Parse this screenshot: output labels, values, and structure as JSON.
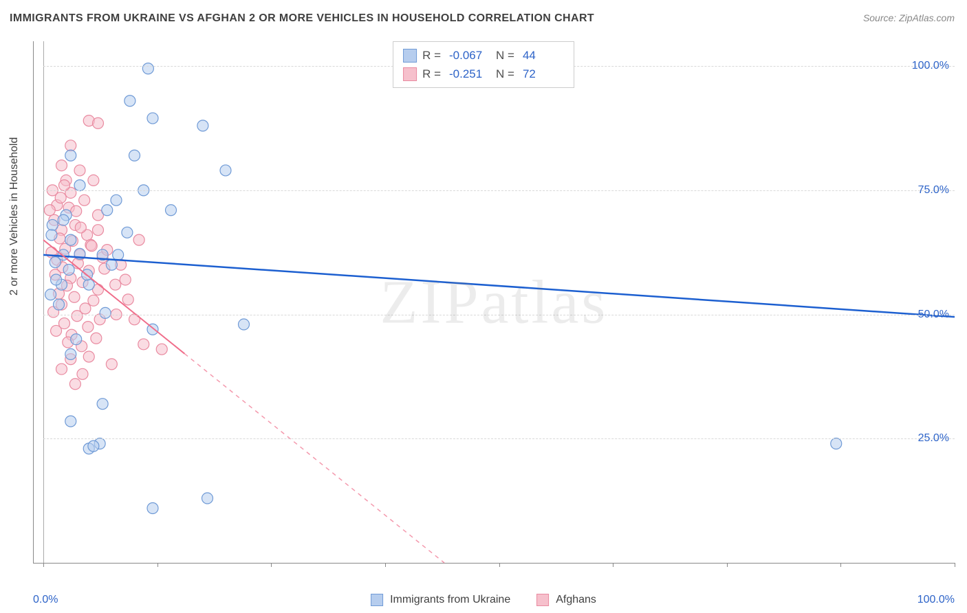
{
  "title": "IMMIGRANTS FROM UKRAINE VS AFGHAN 2 OR MORE VEHICLES IN HOUSEHOLD CORRELATION CHART",
  "source": "Source: ZipAtlas.com",
  "watermark": "ZIPatlas",
  "chart": {
    "type": "scatter",
    "xlabel_min": "0.0%",
    "xlabel_max": "100.0%",
    "yaxis_title": "2 or more Vehicles in Household",
    "xlim": [
      0,
      100
    ],
    "ylim": [
      0,
      105
    ],
    "ytick_labels": [
      "25.0%",
      "50.0%",
      "75.0%",
      "100.0%"
    ],
    "ytick_values": [
      25,
      50,
      75,
      100
    ],
    "xtick_values": [
      0,
      12.5,
      25,
      37.5,
      50,
      62.5,
      75,
      87.5,
      100
    ],
    "grid_color": "#d8d8d8",
    "background_color": "#ffffff",
    "axis_color": "#888888",
    "tick_label_color": "#2d63c8",
    "marker_radius": 8,
    "marker_opacity": 0.55,
    "marker_stroke_width": 1.2,
    "series": [
      {
        "name": "Immigrants from Ukraine",
        "color_fill": "#b6cdee",
        "color_stroke": "#6f9ad6",
        "R": "-0.067",
        "N": "44",
        "trend": {
          "x1": 0,
          "y1": 62,
          "x2": 100,
          "y2": 49.5,
          "solid_until_x": 100,
          "stroke": "#1c5fd0",
          "width": 2.5
        },
        "points": [
          [
            11.5,
            99.5
          ],
          [
            9.5,
            93
          ],
          [
            12,
            89.5
          ],
          [
            17.5,
            88
          ],
          [
            3,
            82
          ],
          [
            10,
            82
          ],
          [
            20,
            79
          ],
          [
            4,
            76
          ],
          [
            11,
            75
          ],
          [
            8,
            73
          ],
          [
            7,
            71
          ],
          [
            14,
            71
          ],
          [
            1,
            68
          ],
          [
            3,
            65
          ],
          [
            2.2,
            62
          ],
          [
            4,
            62.2
          ],
          [
            6.5,
            62
          ],
          [
            8.2,
            62
          ],
          [
            1.3,
            60.5
          ],
          [
            2.8,
            59
          ],
          [
            2,
            56
          ],
          [
            5,
            56
          ],
          [
            0.8,
            54
          ],
          [
            1.7,
            52
          ],
          [
            12,
            47
          ],
          [
            22,
            48
          ],
          [
            3,
            42
          ],
          [
            6.5,
            32
          ],
          [
            3,
            28.5
          ],
          [
            5,
            23
          ],
          [
            6.2,
            24
          ],
          [
            5.5,
            23.5
          ],
          [
            18,
            13
          ],
          [
            12,
            11
          ],
          [
            87,
            24
          ],
          [
            2.5,
            70
          ],
          [
            0.9,
            66
          ],
          [
            1.4,
            57
          ],
          [
            4.8,
            58
          ],
          [
            9.2,
            66.5
          ],
          [
            6.8,
            50.3
          ],
          [
            3.6,
            45
          ],
          [
            2.2,
            69
          ],
          [
            7.5,
            60
          ]
        ]
      },
      {
        "name": "Afghans",
        "color_fill": "#f6c0cc",
        "color_stroke": "#e98aa0",
        "R": "-0.251",
        "N": "72",
        "trend": {
          "x1": 0,
          "y1": 65,
          "x2": 44,
          "y2": 0,
          "solid_until_x": 15.5,
          "stroke": "#f06d8a",
          "width": 2
        },
        "points": [
          [
            5,
            89
          ],
          [
            6,
            88.5
          ],
          [
            3,
            84
          ],
          [
            2,
            80
          ],
          [
            4,
            79
          ],
          [
            2.5,
            77
          ],
          [
            5.5,
            77
          ],
          [
            1,
            75
          ],
          [
            3,
            74.5
          ],
          [
            4.5,
            73
          ],
          [
            1.5,
            72
          ],
          [
            2.8,
            71.5
          ],
          [
            6,
            70
          ],
          [
            1.2,
            69
          ],
          [
            3.5,
            68
          ],
          [
            2,
            67
          ],
          [
            4.8,
            66
          ],
          [
            1.8,
            65.3
          ],
          [
            3.2,
            64.8
          ],
          [
            5.2,
            64
          ],
          [
            2.4,
            63.2
          ],
          [
            0.9,
            62.5
          ],
          [
            4,
            62
          ],
          [
            6.5,
            61.5
          ],
          [
            1.5,
            61
          ],
          [
            3.8,
            60.3
          ],
          [
            2.1,
            59.5
          ],
          [
            5,
            58.8
          ],
          [
            1.3,
            58
          ],
          [
            3,
            57.3
          ],
          [
            4.3,
            56.5
          ],
          [
            2.6,
            55.8
          ],
          [
            6,
            55
          ],
          [
            1.7,
            54.2
          ],
          [
            3.4,
            53.5
          ],
          [
            5.5,
            52.8
          ],
          [
            2,
            52
          ],
          [
            4.6,
            51.2
          ],
          [
            1.1,
            50.5
          ],
          [
            3.7,
            49.7
          ],
          [
            6.2,
            49
          ],
          [
            2.3,
            48.2
          ],
          [
            4.9,
            47.5
          ],
          [
            1.4,
            46.7
          ],
          [
            3.1,
            45.9
          ],
          [
            5.8,
            45.2
          ],
          [
            2.7,
            44.4
          ],
          [
            4.2,
            43.6
          ],
          [
            8,
            50
          ],
          [
            10,
            49
          ],
          [
            11,
            44
          ],
          [
            13,
            43
          ],
          [
            3,
            41
          ],
          [
            5,
            41.5
          ],
          [
            7.5,
            40
          ],
          [
            2,
            39
          ],
          [
            4.3,
            38
          ],
          [
            3.5,
            36
          ],
          [
            6,
            67
          ],
          [
            7,
            63
          ],
          [
            8.5,
            60
          ],
          [
            9,
            57
          ],
          [
            10.5,
            65
          ],
          [
            0.7,
            71
          ],
          [
            1.9,
            73.5
          ],
          [
            2.3,
            76
          ],
          [
            3.6,
            70.8
          ],
          [
            4.1,
            67.5
          ],
          [
            5.3,
            63.8
          ],
          [
            6.7,
            59.2
          ],
          [
            7.9,
            56
          ],
          [
            9.3,
            53
          ]
        ]
      }
    ]
  },
  "legend_bottom": {
    "items": [
      {
        "label": "Immigrants from Ukraine",
        "fill": "#b6cdee",
        "stroke": "#6f9ad6"
      },
      {
        "label": "Afghans",
        "fill": "#f6c0cc",
        "stroke": "#e98aa0"
      }
    ]
  }
}
